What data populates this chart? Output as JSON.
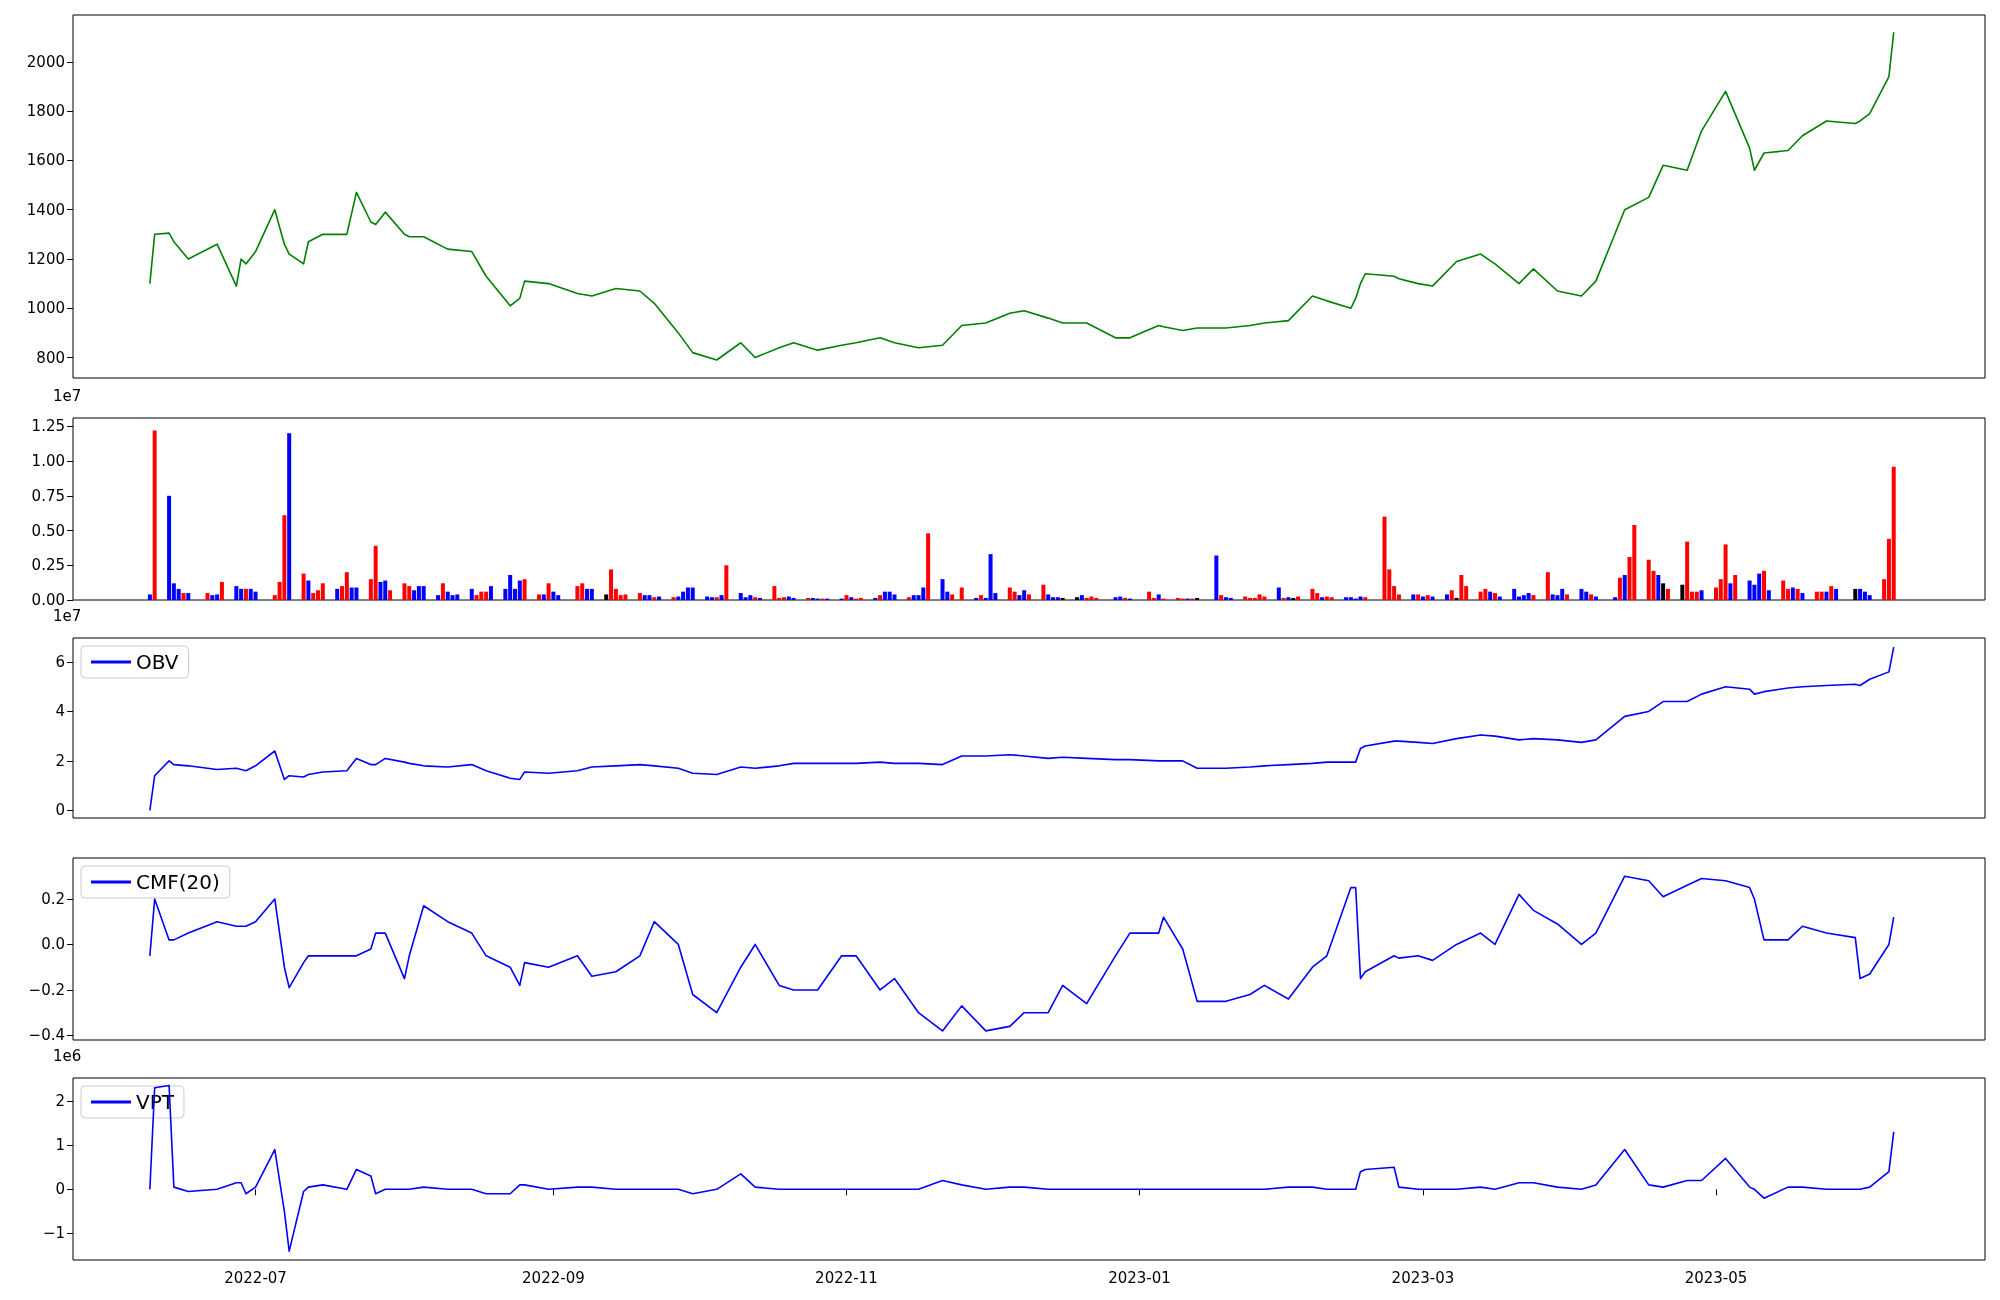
{
  "chart_data": [
    {
      "type": "line",
      "color": "#008000",
      "xlim": [
        "2022-05-24",
        "2023-06-26"
      ],
      "ylim": [
        717,
        2190
      ],
      "yticks": [
        800,
        1000,
        1200,
        1400,
        1600,
        1800,
        2000
      ],
      "tick_labels": "y",
      "x": [
        "2022-06-09",
        "2022-06-10",
        "2022-06-13",
        "2022-06-14",
        "2022-06-17",
        "2022-06-23",
        "2022-06-27",
        "2022-06-28",
        "2022-06-29",
        "2022-07-01",
        "2022-07-05",
        "2022-07-07",
        "2022-07-08",
        "2022-07-11",
        "2022-07-12",
        "2022-07-15",
        "2022-07-20",
        "2022-07-22",
        "2022-07-25",
        "2022-07-26",
        "2022-07-28",
        "2022-08-01",
        "2022-08-02",
        "2022-08-05",
        "2022-08-10",
        "2022-08-15",
        "2022-08-18",
        "2022-08-23",
        "2022-08-25",
        "2022-08-26",
        "2022-08-31",
        "2022-09-06",
        "2022-09-09",
        "2022-09-14",
        "2022-09-19",
        "2022-09-22",
        "2022-09-27",
        "2022-09-30",
        "2022-10-05",
        "2022-10-10",
        "2022-10-13",
        "2022-10-18",
        "2022-10-21",
        "2022-10-26",
        "2022-10-31",
        "2022-11-03",
        "2022-11-08",
        "2022-11-11",
        "2022-11-16",
        "2022-11-21",
        "2022-11-25",
        "2022-11-30",
        "2022-12-05",
        "2022-12-08",
        "2022-12-13",
        "2022-12-16",
        "2022-12-21",
        "2022-12-27",
        "2022-12-30",
        "2023-01-05",
        "2023-01-06",
        "2023-01-10",
        "2023-01-13",
        "2023-01-19",
        "2023-01-24",
        "2023-01-27",
        "2023-02-01",
        "2023-02-06",
        "2023-02-09",
        "2023-02-14",
        "2023-02-15",
        "2023-02-16",
        "2023-02-17",
        "2023-02-23",
        "2023-02-24",
        "2023-02-28",
        "2023-03-03",
        "2023-03-08",
        "2023-03-13",
        "2023-03-16",
        "2023-03-21",
        "2023-03-24",
        "2023-03-29",
        "2023-04-03",
        "2023-04-06",
        "2023-04-12",
        "2023-04-17",
        "2023-04-20",
        "2023-04-25",
        "2023-04-28",
        "2023-05-03",
        "2023-05-08",
        "2023-05-09",
        "2023-05-11",
        "2023-05-16",
        "2023-05-19",
        "2023-05-24",
        "2023-05-30",
        "2023-05-31",
        "2023-06-02",
        "2023-06-06",
        "2023-06-07"
      ],
      "values": [
        1100,
        1300,
        1305,
        1270,
        1200,
        1260,
        1090,
        1200,
        1180,
        1230,
        1400,
        1260,
        1220,
        1180,
        1270,
        1300,
        1300,
        1470,
        1350,
        1340,
        1390,
        1300,
        1290,
        1290,
        1240,
        1230,
        1130,
        1010,
        1040,
        1110,
        1100,
        1060,
        1050,
        1080,
        1070,
        1020,
        900,
        820,
        790,
        860,
        800,
        840,
        860,
        830,
        850,
        860,
        880,
        860,
        840,
        850,
        930,
        940,
        980,
        990,
        960,
        940,
        940,
        880,
        880,
        930,
        925,
        910,
        920,
        920,
        930,
        940,
        950,
        1050,
        1030,
        1000,
        1040,
        1100,
        1140,
        1130,
        1120,
        1100,
        1090,
        1190,
        1220,
        1180,
        1100,
        1160,
        1070,
        1050,
        1110,
        1400,
        1450,
        1580,
        1560,
        1720,
        1880,
        1650,
        1560,
        1630,
        1640,
        1700,
        1760,
        1750,
        1760,
        1790,
        1940,
        2120
      ]
    },
    {
      "type": "bar",
      "xlim": [
        "2022-05-24",
        "2023-06-26"
      ],
      "ylim": [
        0,
        1.31
      ],
      "yticks": [
        {
          "value": 0,
          "label": "0.00"
        },
        0.25,
        {
          "value": 0.5,
          "label": "0.50"
        },
        0.75,
        {
          "value": 1,
          "label": "1.00"
        },
        1.25
      ],
      "tick_labels": "y",
      "annotations": [
        "1e7"
      ],
      "x": [
        "2022-06-09",
        "2022-06-10",
        "2022-06-13",
        "2022-06-14",
        "2022-06-15",
        "2022-06-16",
        "2022-06-17",
        "2022-06-21",
        "2022-06-22",
        "2022-06-23",
        "2022-06-24",
        "2022-06-27",
        "2022-06-28",
        "2022-06-29",
        "2022-06-30",
        "2022-07-01",
        "2022-07-05",
        "2022-07-06",
        "2022-07-07",
        "2022-07-08",
        "2022-07-11",
        "2022-07-12",
        "2022-07-13",
        "2022-07-14",
        "2022-07-15",
        "2022-07-18",
        "2022-07-19",
        "2022-07-20",
        "2022-07-21",
        "2022-07-22",
        "2022-07-25",
        "2022-07-26",
        "2022-07-27",
        "2022-07-28",
        "2022-07-29",
        "2022-08-01",
        "2022-08-02",
        "2022-08-03",
        "2022-08-04",
        "2022-08-05",
        "2022-08-08",
        "2022-08-09",
        "2022-08-10",
        "2022-08-11",
        "2022-08-12",
        "2022-08-15",
        "2022-08-16",
        "2022-08-17",
        "2022-08-18",
        "2022-08-19",
        "2022-08-22",
        "2022-08-23",
        "2022-08-24",
        "2022-08-25",
        "2022-08-26",
        "2022-08-29",
        "2022-08-30",
        "2022-08-31",
        "2022-09-01",
        "2022-09-02",
        "2022-09-06",
        "2022-09-07",
        "2022-09-08",
        "2022-09-09",
        "2022-09-12",
        "2022-09-13",
        "2022-09-14",
        "2022-09-15",
        "2022-09-16",
        "2022-09-19",
        "2022-09-20",
        "2022-09-21",
        "2022-09-22",
        "2022-09-23",
        "2022-09-26",
        "2022-09-27",
        "2022-09-28",
        "2022-09-29",
        "2022-09-30",
        "2022-10-03",
        "2022-10-04",
        "2022-10-05",
        "2022-10-06",
        "2022-10-07",
        "2022-10-10",
        "2022-10-11",
        "2022-10-12",
        "2022-10-13",
        "2022-10-14",
        "2022-10-17",
        "2022-10-18",
        "2022-10-19",
        "2022-10-20",
        "2022-10-21",
        "2022-10-24",
        "2022-10-25",
        "2022-10-26",
        "2022-10-27",
        "2022-10-28",
        "2022-10-31",
        "2022-11-01",
        "2022-11-02",
        "2022-11-03",
        "2022-11-04",
        "2022-11-07",
        "2022-11-08",
        "2022-11-09",
        "2022-11-10",
        "2022-11-11",
        "2022-11-14",
        "2022-11-15",
        "2022-11-16",
        "2022-11-17",
        "2022-11-18",
        "2022-11-21",
        "2022-11-22",
        "2022-11-23",
        "2022-11-25",
        "2022-11-28",
        "2022-11-29",
        "2022-11-30",
        "2022-12-01",
        "2022-12-02",
        "2022-12-05",
        "2022-12-06",
        "2022-12-07",
        "2022-12-08",
        "2022-12-09",
        "2022-12-12",
        "2022-12-13",
        "2022-12-14",
        "2022-12-15",
        "2022-12-16",
        "2022-12-19",
        "2022-12-20",
        "2022-12-21",
        "2022-12-22",
        "2022-12-23",
        "2022-12-27",
        "2022-12-28",
        "2022-12-29",
        "2022-12-30",
        "2023-01-03",
        "2023-01-04",
        "2023-01-05",
        "2023-01-06",
        "2023-01-09",
        "2023-01-10",
        "2023-01-11",
        "2023-01-12",
        "2023-01-13",
        "2023-01-17",
        "2023-01-18",
        "2023-01-19",
        "2023-01-20",
        "2023-01-23",
        "2023-01-24",
        "2023-01-25",
        "2023-01-26",
        "2023-01-27",
        "2023-01-30",
        "2023-01-31",
        "2023-02-01",
        "2023-02-02",
        "2023-02-03",
        "2023-02-06",
        "2023-02-07",
        "2023-02-08",
        "2023-02-09",
        "2023-02-10",
        "2023-02-13",
        "2023-02-14",
        "2023-02-15",
        "2023-02-16",
        "2023-02-17",
        "2023-02-21",
        "2023-02-22",
        "2023-02-23",
        "2023-02-24",
        "2023-02-27",
        "2023-02-28",
        "2023-03-01",
        "2023-03-02",
        "2023-03-03",
        "2023-03-06",
        "2023-03-07",
        "2023-03-08",
        "2023-03-09",
        "2023-03-10",
        "2023-03-13",
        "2023-03-14",
        "2023-03-15",
        "2023-03-16",
        "2023-03-17",
        "2023-03-20",
        "2023-03-21",
        "2023-03-22",
        "2023-03-23",
        "2023-03-24",
        "2023-03-27",
        "2023-03-28",
        "2023-03-29",
        "2023-03-30",
        "2023-03-31",
        "2023-04-03",
        "2023-04-04",
        "2023-04-05",
        "2023-04-06",
        "2023-04-10",
        "2023-04-11",
        "2023-04-12",
        "2023-04-13",
        "2023-04-14",
        "2023-04-17",
        "2023-04-18",
        "2023-04-19",
        "2023-04-20",
        "2023-04-21",
        "2023-04-24",
        "2023-04-25",
        "2023-04-26",
        "2023-04-27",
        "2023-04-28",
        "2023-05-01",
        "2023-05-02",
        "2023-05-03",
        "2023-05-04",
        "2023-05-05",
        "2023-05-08",
        "2023-05-09",
        "2023-05-10",
        "2023-05-11",
        "2023-05-12",
        "2023-05-15",
        "2023-05-16",
        "2023-05-17",
        "2023-05-18",
        "2023-05-19",
        "2023-05-22",
        "2023-05-23",
        "2023-05-24",
        "2023-05-25",
        "2023-05-26",
        "2023-05-30",
        "2023-05-31",
        "2023-06-01",
        "2023-06-02",
        "2023-06-05",
        "2023-06-06",
        "2023-06-07"
      ],
      "values": [
        0.04,
        1.22,
        0.75,
        0.12,
        0.08,
        0.05,
        0.05,
        0.05,
        0.035,
        0.04,
        0.13,
        0.1,
        0.08,
        0.08,
        0.08,
        0.06,
        0.035,
        0.13,
        0.61,
        1.2,
        0.19,
        0.14,
        0.05,
        0.07,
        0.12,
        0.08,
        0.1,
        0.2,
        0.09,
        0.09,
        0.15,
        0.39,
        0.13,
        0.14,
        0.07,
        0.12,
        0.1,
        0.07,
        0.1,
        0.1,
        0.035,
        0.12,
        0.06,
        0.035,
        0.04,
        0.08,
        0.035,
        0.06,
        0.06,
        0.1,
        0.08,
        0.18,
        0.08,
        0.14,
        0.15,
        0.04,
        0.04,
        0.12,
        0.06,
        0.035,
        0.1,
        0.12,
        0.08,
        0.08,
        0.04,
        0.22,
        0.08,
        0.035,
        0.04,
        0.05,
        0.035,
        0.035,
        0.02,
        0.025,
        0.02,
        0.025,
        0.06,
        0.09,
        0.09,
        0.025,
        0.02,
        0.02,
        0.035,
        0.25,
        0.05,
        0.02,
        0.035,
        0.02,
        0.015,
        0.1,
        0.015,
        0.02,
        0.025,
        0.015,
        0.015,
        0.015,
        0.01,
        0.01,
        0.01,
        0.01,
        0.035,
        0.02,
        0.01,
        0.015,
        0.015,
        0.035,
        0.06,
        0.06,
        0.04,
        0.02,
        0.035,
        0.035,
        0.09,
        0.48,
        0.15,
        0.06,
        0.04,
        0.09,
        0.015,
        0.035,
        0.015,
        0.33,
        0.05,
        0.09,
        0.06,
        0.035,
        0.07,
        0.04,
        0.11,
        0.04,
        0.02,
        0.02,
        0.015,
        0.02,
        0.035,
        0.015,
        0.025,
        0.015,
        0.02,
        0.025,
        0.015,
        0.01,
        0.06,
        0.015,
        0.04,
        0.01,
        0.015,
        0.01,
        0.01,
        0.01,
        0.015,
        0.32,
        0.035,
        0.02,
        0.015,
        0.025,
        0.015,
        0.015,
        0.04,
        0.025,
        0.09,
        0.015,
        0.02,
        0.015,
        0.025,
        0.08,
        0.05,
        0.02,
        0.025,
        0.02,
        0.02,
        0.02,
        0.01,
        0.025,
        0.02,
        0.6,
        0.22,
        0.1,
        0.04,
        0.04,
        0.04,
        0.025,
        0.035,
        0.025,
        0.04,
        0.07,
        0.015,
        0.18,
        0.1,
        0.06,
        0.08,
        0.06,
        0.05,
        0.025,
        0.08,
        0.025,
        0.035,
        0.05,
        0.035,
        0.2,
        0.04,
        0.035,
        0.08,
        0.04,
        0.08,
        0.06,
        0.04,
        0.025,
        0.02,
        0.16,
        0.18,
        0.31,
        0.54,
        0.29,
        0.21,
        0.18,
        0.12,
        0.08,
        0.11,
        0.42,
        0.06,
        0.06,
        0.07,
        0.09,
        0.15,
        0.4,
        0.12,
        0.18,
        0.14,
        0.11,
        0.19,
        0.21,
        0.07,
        0.14,
        0.08,
        0.09,
        0.08,
        0.05,
        0.06,
        0.06,
        0.06,
        0.1,
        0.08,
        0.08,
        0.08,
        0.06,
        0.035,
        0.15,
        0.44,
        0.96
      ],
      "colors": [
        "#0000ff",
        "#ff0000",
        "#0000ff",
        "#0000ff",
        "#0000ff",
        "#ff0000",
        "#0000ff",
        "#ff0000",
        "#0000ff",
        "#0000ff",
        "#ff0000",
        "#0000ff",
        "#0000ff",
        "#ff0000",
        "#0000ff",
        "#0000ff",
        "#ff0000",
        "#ff0000",
        "#ff0000",
        "#0000ff",
        "#ff0000",
        "#0000ff",
        "#ff0000",
        "#ff0000",
        "#ff0000",
        "#0000ff",
        "#ff0000",
        "#ff0000",
        "#0000ff",
        "#0000ff",
        "#ff0000",
        "#ff0000",
        "#0000ff",
        "#0000ff",
        "#ff0000",
        "#ff0000",
        "#ff0000",
        "#0000ff",
        "#0000ff",
        "#0000ff",
        "#0000ff",
        "#ff0000",
        "#0000ff",
        "#0000ff",
        "#0000ff",
        "#0000ff",
        "#ff0000",
        "#ff0000",
        "#ff0000",
        "#0000ff",
        "#0000ff",
        "#0000ff",
        "#0000ff",
        "#0000ff",
        "#ff0000",
        "#ff0000",
        "#0000ff",
        "#ff0000",
        "#0000ff",
        "#0000ff",
        "#ff0000",
        "#ff0000",
        "#0000ff",
        "#0000ff",
        "#000000",
        "#ff0000",
        "#ff0000",
        "#ff0000",
        "#ff0000",
        "#ff0000",
        "#0000ff",
        "#0000ff",
        "#ff0000",
        "#0000ff",
        "#ff0000",
        "#0000ff",
        "#0000ff",
        "#0000ff",
        "#0000ff",
        "#0000ff",
        "#0000ff",
        "#ff0000",
        "#0000ff",
        "#ff0000",
        "#0000ff",
        "#0000ff",
        "#0000ff",
        "#ff0000",
        "#0000ff",
        "#ff0000",
        "#ff0000",
        "#ff0000",
        "#0000ff",
        "#0000ff",
        "#ff0000",
        "#0000ff",
        "#0000ff",
        "#ff0000",
        "#0000ff",
        "#0000ff",
        "#ff0000",
        "#0000ff",
        "#ff0000",
        "#ff0000",
        "#0000ff",
        "#ff0000",
        "#0000ff",
        "#0000ff",
        "#0000ff",
        "#ff0000",
        "#0000ff",
        "#0000ff",
        "#0000ff",
        "#ff0000",
        "#0000ff",
        "#0000ff",
        "#ff0000",
        "#ff0000",
        "#0000ff",
        "#ff0000",
        "#0000ff",
        "#0000ff",
        "#0000ff",
        "#ff0000",
        "#ff0000",
        "#0000ff",
        "#0000ff",
        "#ff0000",
        "#ff0000",
        "#0000ff",
        "#0000ff",
        "#0000ff",
        "#000000",
        "#000000",
        "#0000ff",
        "#ff0000",
        "#ff0000",
        "#ff0000",
        "#0000ff",
        "#0000ff",
        "#ff0000",
        "#0000ff",
        "#ff0000",
        "#ff0000",
        "#0000ff",
        "#ff0000",
        "#ff0000",
        "#ff0000",
        "#0000ff",
        "#ff0000",
        "#000000",
        "#0000ff",
        "#ff0000",
        "#0000ff",
        "#0000ff",
        "#ff0000",
        "#ff0000",
        "#ff0000",
        "#ff0000",
        "#ff0000",
        "#0000ff",
        "#ff0000",
        "#0000ff",
        "#000000",
        "#ff0000",
        "#ff0000",
        "#ff0000",
        "#0000ff",
        "#ff0000",
        "#ff0000",
        "#0000ff",
        "#0000ff",
        "#0000ff",
        "#0000ff",
        "#ff0000",
        "#ff0000",
        "#ff0000",
        "#ff0000",
        "#ff0000",
        "#0000ff",
        "#ff0000",
        "#0000ff",
        "#ff0000",
        "#0000ff",
        "#0000ff",
        "#ff0000",
        "#000000",
        "#ff0000",
        "#ff0000",
        "#ff0000",
        "#ff0000",
        "#0000ff",
        "#ff0000",
        "#0000ff",
        "#0000ff",
        "#0000ff",
        "#0000ff",
        "#0000ff",
        "#ff0000",
        "#ff0000",
        "#0000ff",
        "#0000ff",
        "#0000ff",
        "#ff0000",
        "#0000ff",
        "#0000ff",
        "#ff0000",
        "#0000ff",
        "#0000ff",
        "#ff0000",
        "#0000ff",
        "#ff0000",
        "#ff0000",
        "#ff0000",
        "#ff0000",
        "#0000ff",
        "#000000",
        "#ff0000",
        "#000000",
        "#ff0000",
        "#ff0000",
        "#ff0000",
        "#0000ff",
        "#ff0000",
        "#ff0000",
        "#ff0000",
        "#0000ff",
        "#ff0000",
        "#0000ff",
        "#0000ff",
        "#0000ff",
        "#ff0000",
        "#0000ff",
        "#ff0000",
        "#ff0000",
        "#0000ff",
        "#ff0000",
        "#0000ff",
        "#ff0000",
        "#ff0000",
        "#0000ff",
        "#ff0000",
        "#0000ff",
        "#000000",
        "#0000ff",
        "#0000ff",
        "#0000ff",
        "#ff0000",
        "#ff0000",
        "#ff0000"
      ]
    },
    {
      "type": "line",
      "xlim": [
        "2022-05-24",
        "2023-06-26"
      ],
      "ylim": [
        -0.31,
        6.97
      ],
      "yticks": [
        0,
        2,
        4,
        6
      ],
      "tick_labels": "y",
      "legend": "top left",
      "annotations": [
        "1e7"
      ],
      "x": [
        "2022-06-09",
        "2022-06-10",
        "2022-06-13",
        "2022-06-14",
        "2022-06-17",
        "2022-06-23",
        "2022-06-27",
        "2022-06-28",
        "2022-06-29",
        "2022-07-01",
        "2022-07-05",
        "2022-07-07",
        "2022-07-08",
        "2022-07-11",
        "2022-07-12",
        "2022-07-15",
        "2022-07-20",
        "2022-07-22",
        "2022-07-25",
        "2022-07-26",
        "2022-07-28",
        "2022-08-01",
        "2022-08-02",
        "2022-08-05",
        "2022-08-10",
        "2022-08-15",
        "2022-08-18",
        "2022-08-23",
        "2022-08-25",
        "2022-08-26",
        "2022-08-31",
        "2022-09-06",
        "2022-09-09",
        "2022-09-14",
        "2022-09-19",
        "2022-09-22",
        "2022-09-27",
        "2022-09-30",
        "2022-10-05",
        "2022-10-10",
        "2022-10-13",
        "2022-10-18",
        "2022-10-21",
        "2022-10-26",
        "2022-10-31",
        "2022-11-03",
        "2022-11-08",
        "2022-11-11",
        "2022-11-16",
        "2022-11-21",
        "2022-11-25",
        "2022-11-30",
        "2022-12-05",
        "2022-12-08",
        "2022-12-13",
        "2022-12-16",
        "2022-12-21",
        "2022-12-27",
        "2022-12-30",
        "2023-01-05",
        "2023-01-06",
        "2023-01-10",
        "2023-01-13",
        "2023-01-19",
        "2023-01-24",
        "2023-01-27",
        "2023-02-01",
        "2023-02-06",
        "2023-02-09",
        "2023-02-14",
        "2023-02-15",
        "2023-02-16",
        "2023-02-17",
        "2023-02-23",
        "2023-02-24",
        "2023-02-28",
        "2023-03-03",
        "2023-03-08",
        "2023-03-13",
        "2023-03-16",
        "2023-03-21",
        "2023-03-24",
        "2023-03-29",
        "2023-04-03",
        "2023-04-06",
        "2023-04-12",
        "2023-04-17",
        "2023-04-20",
        "2023-04-25",
        "2023-04-28",
        "2023-05-03",
        "2023-05-08",
        "2023-05-09",
        "2023-05-11",
        "2023-05-16",
        "2023-05-19",
        "2023-05-24",
        "2023-05-30",
        "2023-05-31",
        "2023-06-02",
        "2023-06-06",
        "2023-06-07"
      ],
      "series": [
        {
          "name": "OBV",
          "color": "#0000ff",
          "values": [
            0,
            1.4,
            2.0,
            1.85,
            1.8,
            1.65,
            1.7,
            1.65,
            1.6,
            1.8,
            2.4,
            1.25,
            1.4,
            1.35,
            1.45,
            1.55,
            1.6,
            2.1,
            1.85,
            1.85,
            2.1,
            1.95,
            1.9,
            1.8,
            1.75,
            1.85,
            1.6,
            1.3,
            1.25,
            1.55,
            1.5,
            1.6,
            1.75,
            1.8,
            1.85,
            1.8,
            1.7,
            1.5,
            1.45,
            1.75,
            1.7,
            1.8,
            1.9,
            1.9,
            1.9,
            1.9,
            1.95,
            1.9,
            1.9,
            1.85,
            2.2,
            2.2,
            2.25,
            2.2,
            2.1,
            2.15,
            2.1,
            2.05,
            2.05,
            2.0,
            2.0,
            2.0,
            1.7,
            1.7,
            1.75,
            1.8,
            1.85,
            1.9,
            1.95,
            1.95,
            1.95,
            2.5,
            2.6,
            2.8,
            2.8,
            2.75,
            2.7,
            2.9,
            3.05,
            3.0,
            2.85,
            2.9,
            2.85,
            2.75,
            2.85,
            3.8,
            4.0,
            4.4,
            4.4,
            4.7,
            5.0,
            4.9,
            4.7,
            4.8,
            4.95,
            5.0,
            5.05,
            5.1,
            5.05,
            5.3,
            5.6,
            6.6
          ]
        }
      ]
    },
    {
      "type": "line",
      "xlim": [
        "2022-05-24",
        "2023-06-26"
      ],
      "ylim": [
        -0.42,
        0.38
      ],
      "yticks": [
        {
          "value": -0.4,
          "label": "−0.4"
        },
        {
          "value": -0.2,
          "label": "−0.2"
        },
        {
          "value": 0,
          "label": "0.0"
        },
        0.2
      ],
      "tick_labels": "y",
      "legend": "top left",
      "x": [
        "2022-06-09",
        "2022-06-10",
        "2022-06-13",
        "2022-06-14",
        "2022-06-17",
        "2022-06-23",
        "2022-06-27",
        "2022-06-28",
        "2022-06-29",
        "2022-07-01",
        "2022-07-05",
        "2022-07-07",
        "2022-07-08",
        "2022-07-11",
        "2022-07-12",
        "2022-07-15",
        "2022-07-20",
        "2022-07-22",
        "2022-07-25",
        "2022-07-26",
        "2022-07-28",
        "2022-08-01",
        "2022-08-02",
        "2022-08-05",
        "2022-08-10",
        "2022-08-15",
        "2022-08-18",
        "2022-08-23",
        "2022-08-25",
        "2022-08-26",
        "2022-08-31",
        "2022-09-06",
        "2022-09-09",
        "2022-09-14",
        "2022-09-19",
        "2022-09-22",
        "2022-09-27",
        "2022-09-30",
        "2022-10-05",
        "2022-10-10",
        "2022-10-13",
        "2022-10-18",
        "2022-10-21",
        "2022-10-26",
        "2022-10-31",
        "2022-11-03",
        "2022-11-08",
        "2022-11-11",
        "2022-11-16",
        "2022-11-21",
        "2022-11-25",
        "2022-11-30",
        "2022-12-05",
        "2022-12-08",
        "2022-12-13",
        "2022-12-16",
        "2022-12-21",
        "2022-12-27",
        "2022-12-30",
        "2023-01-05",
        "2023-01-06",
        "2023-01-10",
        "2023-01-13",
        "2023-01-19",
        "2023-01-24",
        "2023-01-27",
        "2023-02-01",
        "2023-02-06",
        "2023-02-09",
        "2023-02-14",
        "2023-02-15",
        "2023-02-16",
        "2023-02-17",
        "2023-02-23",
        "2023-02-24",
        "2023-02-28",
        "2023-03-03",
        "2023-03-08",
        "2023-03-13",
        "2023-03-16",
        "2023-03-21",
        "2023-03-24",
        "2023-03-29",
        "2023-04-03",
        "2023-04-06",
        "2023-04-12",
        "2023-04-17",
        "2023-04-20",
        "2023-04-25",
        "2023-04-28",
        "2023-05-03",
        "2023-05-08",
        "2023-05-09",
        "2023-05-11",
        "2023-05-16",
        "2023-05-19",
        "2023-05-24",
        "2023-05-30",
        "2023-05-31",
        "2023-06-02",
        "2023-06-06",
        "2023-06-07"
      ],
      "series": [
        {
          "name": "CMF(20)",
          "color": "#0000ff",
          "values": [
            -0.05,
            0.2,
            0.02,
            0.02,
            0.05,
            0.1,
            0.08,
            0.08,
            0.08,
            0.1,
            0.2,
            -0.1,
            -0.19,
            -0.08,
            -0.05,
            -0.05,
            -0.05,
            -0.05,
            -0.02,
            0.05,
            0.05,
            -0.15,
            -0.05,
            0.17,
            0.1,
            0.05,
            -0.05,
            -0.1,
            -0.18,
            -0.08,
            -0.1,
            -0.05,
            -0.14,
            -0.12,
            -0.05,
            0.1,
            0.0,
            -0.22,
            -0.3,
            -0.1,
            0.0,
            -0.18,
            -0.2,
            -0.2,
            -0.05,
            -0.05,
            -0.2,
            -0.15,
            -0.3,
            -0.38,
            -0.27,
            -0.38,
            -0.36,
            -0.3,
            -0.3,
            -0.18,
            -0.26,
            -0.05,
            0.05,
            0.05,
            0.12,
            -0.02,
            -0.25,
            -0.25,
            -0.22,
            -0.18,
            -0.24,
            -0.1,
            -0.05,
            0.25,
            0.25,
            -0.15,
            -0.12,
            -0.05,
            -0.06,
            -0.05,
            -0.07,
            0.0,
            0.05,
            0.0,
            0.22,
            0.15,
            0.09,
            0.0,
            0.05,
            0.3,
            0.28,
            0.21,
            0.26,
            0.29,
            0.28,
            0.25,
            0.2,
            0.02,
            0.02,
            0.08,
            0.05,
            0.03,
            -0.15,
            -0.13,
            0.0,
            0.12
          ]
        }
      ]
    },
    {
      "type": "line",
      "xlim": [
        "2022-05-24",
        "2023-06-26"
      ],
      "ylim": [
        -1.6,
        2.52
      ],
      "yticks": [
        {
          "value": -1,
          "label": "−1"
        },
        0,
        1,
        2
      ],
      "legend": "top left",
      "annotations": [
        "1e6"
      ],
      "xticks": [
        {
          "value": "2022-07-01",
          "label": "2022-07"
        },
        {
          "value": "2022-09-01",
          "label": "2022-09"
        },
        {
          "value": "2022-11-01",
          "label": "2022-11"
        },
        {
          "value": "2023-01-01",
          "label": "2023-01"
        },
        {
          "value": "2023-03-01",
          "label": "2023-03"
        },
        {
          "value": "2023-05-01",
          "label": "2023-05"
        }
      ],
      "x": [
        "2022-06-09",
        "2022-06-10",
        "2022-06-13",
        "2022-06-14",
        "2022-06-17",
        "2022-06-23",
        "2022-06-27",
        "2022-06-28",
        "2022-06-29",
        "2022-07-01",
        "2022-07-05",
        "2022-07-07",
        "2022-07-08",
        "2022-07-11",
        "2022-07-12",
        "2022-07-15",
        "2022-07-20",
        "2022-07-22",
        "2022-07-25",
        "2022-07-26",
        "2022-07-28",
        "2022-08-01",
        "2022-08-02",
        "2022-08-05",
        "2022-08-10",
        "2022-08-15",
        "2022-08-18",
        "2022-08-23",
        "2022-08-25",
        "2022-08-26",
        "2022-08-31",
        "2022-09-06",
        "2022-09-09",
        "2022-09-14",
        "2022-09-19",
        "2022-09-22",
        "2022-09-27",
        "2022-09-30",
        "2022-10-05",
        "2022-10-10",
        "2022-10-13",
        "2022-10-18",
        "2022-10-21",
        "2022-10-26",
        "2022-10-31",
        "2022-11-03",
        "2022-11-08",
        "2022-11-11",
        "2022-11-16",
        "2022-11-21",
        "2022-11-25",
        "2022-11-30",
        "2022-12-05",
        "2022-12-08",
        "2022-12-13",
        "2022-12-16",
        "2022-12-21",
        "2022-12-27",
        "2022-12-30",
        "2023-01-05",
        "2023-01-06",
        "2023-01-10",
        "2023-01-13",
        "2023-01-19",
        "2023-01-24",
        "2023-01-27",
        "2023-02-01",
        "2023-02-06",
        "2023-02-09",
        "2023-02-14",
        "2023-02-15",
        "2023-02-16",
        "2023-02-17",
        "2023-02-23",
        "2023-02-24",
        "2023-02-28",
        "2023-03-03",
        "2023-03-08",
        "2023-03-13",
        "2023-03-16",
        "2023-03-21",
        "2023-03-24",
        "2023-03-29",
        "2023-04-03",
        "2023-04-06",
        "2023-04-12",
        "2023-04-17",
        "2023-04-20",
        "2023-04-25",
        "2023-04-28",
        "2023-05-03",
        "2023-05-08",
        "2023-05-09",
        "2023-05-11",
        "2023-05-16",
        "2023-05-19",
        "2023-05-24",
        "2023-05-30",
        "2023-05-31",
        "2023-06-02",
        "2023-06-06",
        "2023-06-07"
      ],
      "series": [
        {
          "name": "VPT",
          "color": "#0000ff",
          "values": [
            0,
            2.3,
            2.35,
            0.05,
            -0.05,
            0.0,
            0.15,
            0.15,
            -0.1,
            0.05,
            0.9,
            -0.5,
            -1.4,
            -0.05,
            0.05,
            0.1,
            0.0,
            0.45,
            0.3,
            -0.1,
            0.0,
            0.0,
            0.0,
            0.05,
            0.0,
            0.0,
            -0.1,
            -0.1,
            0.1,
            0.1,
            0.0,
            0.05,
            0.05,
            0.0,
            0.0,
            0.0,
            0.0,
            -0.1,
            0.0,
            0.35,
            0.05,
            0.0,
            0.0,
            0.0,
            0.0,
            0.0,
            0.0,
            0.0,
            0.0,
            0.2,
            0.1,
            0.0,
            0.05,
            0.05,
            0.0,
            0.0,
            0.0,
            0.0,
            0.0,
            0.0,
            0.0,
            0.0,
            0.0,
            0.0,
            0.0,
            0.0,
            0.05,
            0.05,
            0.0,
            0.0,
            0.0,
            0.4,
            0.45,
            0.5,
            0.05,
            0.0,
            0.0,
            0.0,
            0.05,
            0.0,
            0.15,
            0.15,
            0.05,
            0.0,
            0.1,
            0.9,
            0.1,
            0.05,
            0.2,
            0.2,
            0.7,
            0.05,
            0.0,
            -0.2,
            0.05,
            0.05,
            0.0,
            0.0,
            0.0,
            0.05,
            0.4,
            1.3
          ]
        }
      ]
    }
  ]
}
